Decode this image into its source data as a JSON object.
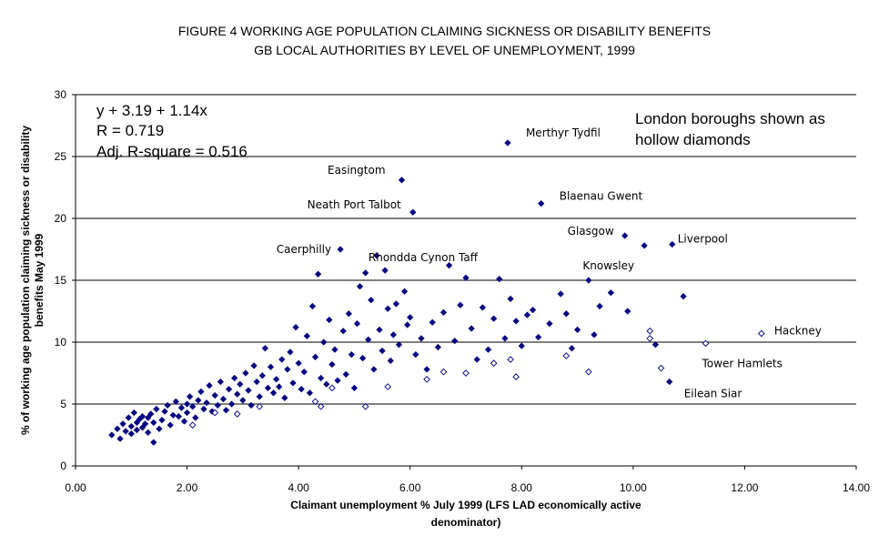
{
  "chart_data": {
    "type": "scatter",
    "title": "FIGURE 4   WORKING AGE POPULATION CLAIMING SICKNESS OR DISABILITY BENEFITS",
    "subtitle": "GB LOCAL AUTHORITIES BY LEVEL OF UNEMPLOYMENT, 1999",
    "xlabel_line1": "Claimant unemployment % July 1999 (LFS LAD economically active",
    "xlabel_line2": "denominator)",
    "ylabel_line1": "% of working age population claiming sickness or disability",
    "ylabel_line2": "benefits May 1999",
    "xlim": [
      0,
      14
    ],
    "ylim": [
      0,
      30
    ],
    "x_ticks": [
      "0.00",
      "2.00",
      "4.00",
      "6.00",
      "8.00",
      "10.00",
      "12.00",
      "14.00"
    ],
    "y_ticks": [
      "0",
      "5",
      "10",
      "15",
      "20",
      "25",
      "30"
    ],
    "gridlines": "horizontal",
    "regression": {
      "equation": "y + 3.19 + 1.14x",
      "r": "R = 0.719",
      "adj_r2": "Adj. R-square = 0.516"
    },
    "legend_note_line1": "London boroughs shown as",
    "legend_note_line2": "hollow diamonds",
    "colors": {
      "marker": "#000080",
      "grid": "#000000"
    },
    "labeled_points": [
      {
        "label": "Merthyr Tydfil",
        "x": 7.75,
        "y": 26.1
      },
      {
        "label": "Easingtom",
        "x": 5.85,
        "y": 23.1
      },
      {
        "label": "Blaenau Gwent",
        "x": 8.35,
        "y": 21.2
      },
      {
        "label": "Neath Port Talbot",
        "x": 6.05,
        "y": 20.5
      },
      {
        "label": "Glasgow",
        "x": 9.85,
        "y": 18.6
      },
      {
        "label": "Liverpool",
        "x": 10.7,
        "y": 17.9
      },
      {
        "label": "Knowsley",
        "x": 10.2,
        "y": 17.8
      },
      {
        "label": "Caerphilly",
        "x": 4.75,
        "y": 17.5
      },
      {
        "label": "Rhondda Cynon Taff",
        "x": 5.35,
        "y": 17.0
      },
      {
        "label": "Hackney",
        "x": 12.3,
        "y": 10.7
      },
      {
        "label": "Tower Hamlets",
        "x": 11.3,
        "y": 9.9
      },
      {
        "label": "Eilean Siar",
        "x": 10.65,
        "y": 6.8
      }
    ],
    "series": [
      {
        "name": "Local authorities",
        "marker": "filled-diamond",
        "points": [
          [
            0.65,
            2.5
          ],
          [
            0.75,
            3.0
          ],
          [
            0.8,
            2.2
          ],
          [
            0.85,
            3.4
          ],
          [
            0.9,
            2.8
          ],
          [
            0.95,
            3.9
          ],
          [
            1.0,
            3.2
          ],
          [
            1.0,
            2.6
          ],
          [
            1.05,
            4.3
          ],
          [
            1.1,
            3.5
          ],
          [
            1.1,
            2.9
          ],
          [
            1.15,
            3.8
          ],
          [
            1.2,
            3.1
          ],
          [
            1.2,
            4.0
          ],
          [
            1.25,
            3.4
          ],
          [
            1.3,
            2.7
          ],
          [
            1.3,
            3.9
          ],
          [
            1.35,
            4.2
          ],
          [
            1.4,
            1.9
          ],
          [
            1.4,
            3.5
          ],
          [
            1.45,
            4.6
          ],
          [
            1.5,
            3.0
          ],
          [
            1.55,
            3.7
          ],
          [
            1.6,
            4.4
          ],
          [
            1.65,
            4.9
          ],
          [
            1.7,
            3.3
          ],
          [
            1.75,
            4.1
          ],
          [
            1.8,
            5.2
          ],
          [
            1.85,
            4.0
          ],
          [
            1.9,
            4.7
          ],
          [
            1.95,
            3.6
          ],
          [
            2.0,
            5.0
          ],
          [
            2.0,
            4.3
          ],
          [
            2.05,
            5.6
          ],
          [
            2.1,
            4.8
          ],
          [
            2.15,
            3.9
          ],
          [
            2.2,
            5.3
          ],
          [
            2.25,
            6.0
          ],
          [
            2.3,
            4.6
          ],
          [
            2.35,
            5.1
          ],
          [
            2.4,
            6.5
          ],
          [
            2.45,
            4.4
          ],
          [
            2.5,
            5.7
          ],
          [
            2.55,
            4.9
          ],
          [
            2.6,
            6.8
          ],
          [
            2.65,
            5.4
          ],
          [
            2.7,
            4.5
          ],
          [
            2.75,
            6.2
          ],
          [
            2.8,
            5.0
          ],
          [
            2.85,
            7.1
          ],
          [
            2.9,
            5.8
          ],
          [
            2.95,
            6.6
          ],
          [
            3.0,
            5.3
          ],
          [
            3.05,
            7.5
          ],
          [
            3.1,
            6.1
          ],
          [
            3.15,
            4.9
          ],
          [
            3.2,
            8.1
          ],
          [
            3.25,
            6.8
          ],
          [
            3.3,
            5.6
          ],
          [
            3.35,
            7.3
          ],
          [
            3.4,
            9.5
          ],
          [
            3.45,
            6.3
          ],
          [
            3.5,
            8.0
          ],
          [
            3.55,
            5.9
          ],
          [
            3.6,
            7.0
          ],
          [
            3.65,
            6.4
          ],
          [
            3.7,
            8.6
          ],
          [
            3.75,
            5.5
          ],
          [
            3.8,
            7.8
          ],
          [
            3.85,
            9.2
          ],
          [
            3.9,
            6.7
          ],
          [
            3.95,
            11.2
          ],
          [
            4.0,
            8.3
          ],
          [
            4.05,
            6.2
          ],
          [
            4.1,
            7.6
          ],
          [
            4.15,
            10.5
          ],
          [
            4.2,
            5.9
          ],
          [
            4.25,
            12.9
          ],
          [
            4.3,
            8.8
          ],
          [
            4.35,
            15.5
          ],
          [
            4.4,
            7.1
          ],
          [
            4.45,
            10.0
          ],
          [
            4.5,
            6.6
          ],
          [
            4.55,
            11.8
          ],
          [
            4.6,
            8.2
          ],
          [
            4.65,
            9.4
          ],
          [
            4.7,
            6.9
          ],
          [
            4.75,
            17.5
          ],
          [
            4.8,
            10.9
          ],
          [
            4.85,
            7.4
          ],
          [
            4.9,
            12.3
          ],
          [
            4.95,
            9.0
          ],
          [
            5.0,
            6.3
          ],
          [
            5.05,
            11.5
          ],
          [
            5.1,
            14.5
          ],
          [
            5.15,
            8.7
          ],
          [
            5.2,
            15.6
          ],
          [
            5.25,
            10.2
          ],
          [
            5.3,
            13.4
          ],
          [
            5.35,
            7.8
          ],
          [
            5.4,
            17.0
          ],
          [
            5.45,
            11.0
          ],
          [
            5.5,
            9.3
          ],
          [
            5.55,
            15.8
          ],
          [
            5.6,
            12.7
          ],
          [
            5.65,
            8.5
          ],
          [
            5.7,
            10.6
          ],
          [
            5.75,
            13.1
          ],
          [
            5.8,
            9.8
          ],
          [
            5.85,
            23.1
          ],
          [
            5.9,
            14.1
          ],
          [
            5.95,
            11.4
          ],
          [
            6.0,
            12.0
          ],
          [
            6.05,
            20.5
          ],
          [
            6.1,
            9.0
          ],
          [
            6.2,
            10.3
          ],
          [
            6.3,
            7.8
          ],
          [
            6.4,
            11.6
          ],
          [
            6.5,
            9.6
          ],
          [
            6.6,
            12.4
          ],
          [
            6.7,
            16.2
          ],
          [
            6.8,
            10.1
          ],
          [
            6.9,
            13.0
          ],
          [
            7.0,
            15.2
          ],
          [
            7.1,
            11.1
          ],
          [
            7.2,
            8.6
          ],
          [
            7.3,
            12.8
          ],
          [
            7.4,
            9.4
          ],
          [
            7.5,
            11.9
          ],
          [
            7.6,
            15.1
          ],
          [
            7.7,
            10.3
          ],
          [
            7.75,
            26.1
          ],
          [
            7.8,
            13.5
          ],
          [
            7.9,
            11.7
          ],
          [
            8.0,
            9.7
          ],
          [
            8.1,
            12.2
          ],
          [
            8.2,
            12.6
          ],
          [
            8.3,
            10.4
          ],
          [
            8.35,
            21.2
          ],
          [
            8.5,
            11.5
          ],
          [
            8.7,
            13.9
          ],
          [
            8.8,
            12.3
          ],
          [
            8.9,
            9.5
          ],
          [
            9.0,
            11.0
          ],
          [
            9.2,
            15.0
          ],
          [
            9.3,
            10.6
          ],
          [
            9.4,
            12.9
          ],
          [
            9.6,
            14.0
          ],
          [
            9.85,
            18.6
          ],
          [
            9.9,
            12.5
          ],
          [
            10.2,
            17.8
          ],
          [
            10.4,
            9.8
          ],
          [
            10.7,
            17.9
          ],
          [
            10.9,
            13.7
          ],
          [
            10.65,
            6.8
          ]
        ]
      },
      {
        "name": "London boroughs",
        "marker": "hollow-diamond",
        "points": [
          [
            2.1,
            3.3
          ],
          [
            2.5,
            4.3
          ],
          [
            2.9,
            4.2
          ],
          [
            3.3,
            4.8
          ],
          [
            4.3,
            5.2
          ],
          [
            4.4,
            4.8
          ],
          [
            4.6,
            6.3
          ],
          [
            5.2,
            4.8
          ],
          [
            5.6,
            6.4
          ],
          [
            6.3,
            7.0
          ],
          [
            6.6,
            7.6
          ],
          [
            7.0,
            7.5
          ],
          [
            7.5,
            8.3
          ],
          [
            7.8,
            8.6
          ],
          [
            7.9,
            7.2
          ],
          [
            8.8,
            8.9
          ],
          [
            9.2,
            7.6
          ],
          [
            10.3,
            10.3
          ],
          [
            10.3,
            10.9
          ],
          [
            10.5,
            7.9
          ],
          [
            11.3,
            9.9
          ],
          [
            12.3,
            10.7
          ]
        ]
      }
    ]
  }
}
